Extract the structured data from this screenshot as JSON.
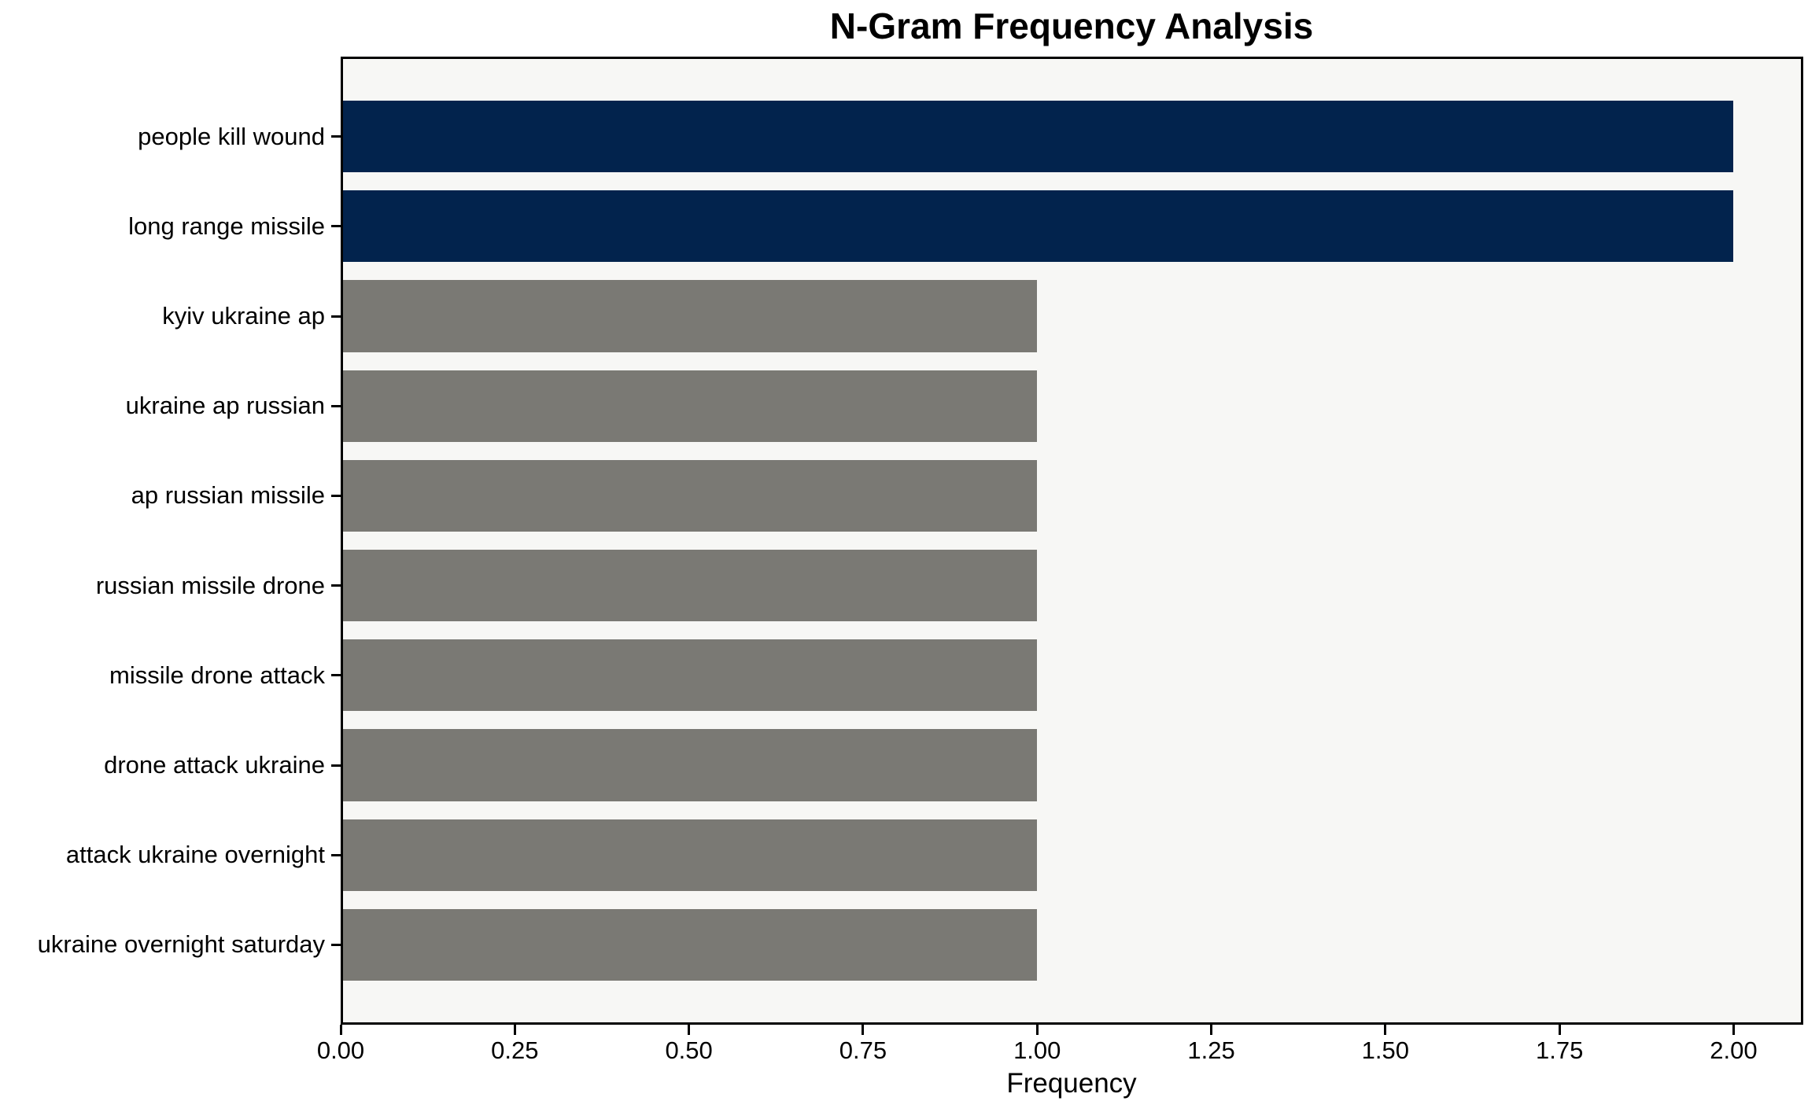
{
  "chart_data": {
    "type": "bar",
    "orientation": "horizontal",
    "title": "N-Gram Frequency Analysis",
    "xlabel": "Frequency",
    "ylabel": "",
    "categories": [
      "people kill wound",
      "long range missile",
      "kyiv ukraine ap",
      "ukraine ap russian",
      "ap russian missile",
      "russian missile drone",
      "missile drone attack",
      "drone attack ukraine",
      "attack ukraine overnight",
      "ukraine overnight saturday"
    ],
    "values": [
      2,
      2,
      1,
      1,
      1,
      1,
      1,
      1,
      1,
      1
    ],
    "bar_colors": [
      "#02234d",
      "#02234d",
      "#7a7974",
      "#7a7974",
      "#7a7974",
      "#7a7974",
      "#7a7974",
      "#7a7974",
      "#7a7974",
      "#7a7974"
    ],
    "xlim": [
      0,
      2.1
    ],
    "xticks": [
      0,
      0.25,
      0.5,
      0.75,
      1.0,
      1.25,
      1.5,
      1.75,
      2.0
    ],
    "xtick_labels": [
      "0.00",
      "0.25",
      "0.50",
      "0.75",
      "1.00",
      "1.25",
      "1.50",
      "1.75",
      "2.00"
    ],
    "grid": false,
    "legend": null,
    "colors": {
      "highlight_bar": "#02234d",
      "default_bar": "#7a7974",
      "plot_background": "#f7f7f5",
      "figure_background": "#ffffff",
      "spine": "#000000",
      "text": "#000000"
    }
  }
}
